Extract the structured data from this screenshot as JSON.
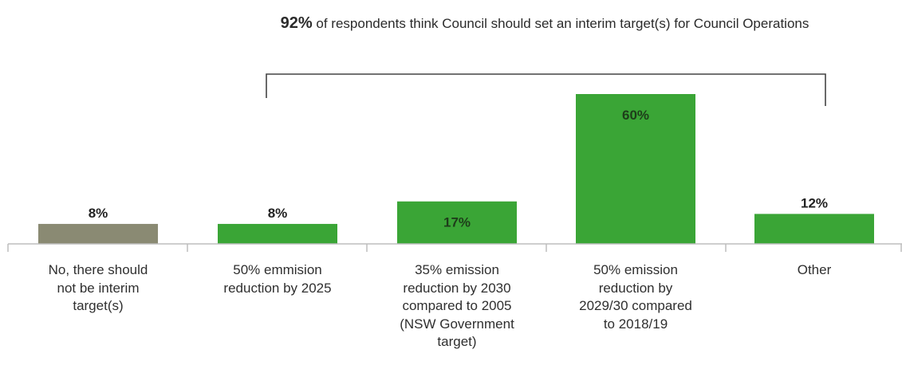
{
  "annotation": {
    "highlight": "92%",
    "text": "of respondents think Council should set an interim target(s) for Council Operations"
  },
  "colors": {
    "green": "#3aa536",
    "grey": "#8a8a73",
    "text": "#2f2f2f",
    "axis": "#bdbdbd"
  },
  "chart_data": {
    "type": "bar",
    "title": "",
    "xlabel": "",
    "ylabel": "",
    "ylim": [
      0,
      60
    ],
    "grid": false,
    "categories": [
      "No, there should not be interim target(s)",
      "50% emmision reduction by 2025",
      "35% emission reduction by 2030 compared to 2005 (NSW Government target)",
      "50% emission reduction by 2029/30 compared to 2018/19",
      "Other"
    ],
    "values": [
      8,
      8,
      17,
      60,
      12
    ],
    "value_labels": [
      "8%",
      "8%",
      "17%",
      "60%",
      "12%"
    ],
    "bar_colors": [
      "#8a8a73",
      "#3aa536",
      "#3aa536",
      "#3aa536",
      "#3aa536"
    ],
    "label_inside": [
      false,
      false,
      true,
      true,
      false
    ],
    "bracket_over_categories": [
      1,
      4
    ]
  },
  "category_lines": [
    [
      "No, there should",
      "not be interim",
      "target(s)"
    ],
    [
      "50% emmision",
      "reduction by 2025"
    ],
    [
      "35% emission",
      "reduction by 2030",
      "compared to 2005",
      "(NSW Government",
      "target)"
    ],
    [
      "50% emission",
      "reduction by",
      "2029/30 compared",
      "to 2018/19"
    ],
    [
      "Other"
    ]
  ]
}
